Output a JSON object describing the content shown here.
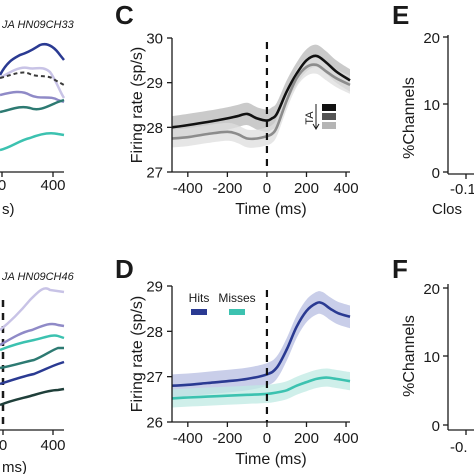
{
  "panels": {
    "A_partial": {
      "title": "JA HN09CH33",
      "xticks": [
        "0",
        "400"
      ],
      "xlabel": "s)"
    },
    "B_partial": {
      "title": "JA HN09CH46",
      "xticks": [
        "0",
        "400"
      ],
      "xlabel": "ms)"
    },
    "C": {
      "letter": "C"
    },
    "D": {
      "letter": "D"
    },
    "E_partial": {
      "letter": "E",
      "ylabel": "%Channels",
      "yticks": [
        "20",
        "10",
        "0"
      ],
      "xtick": "-0.1",
      "xlabel": "Clos"
    },
    "F_partial": {
      "letter": "F",
      "ylabel": "%Channels",
      "yticks": [
        "20",
        "10",
        "0"
      ],
      "xtick": "-0."
    }
  },
  "chart_data": [
    {
      "panel": "C",
      "type": "line",
      "title": "",
      "xlabel": "Time (ms)",
      "ylabel": "Firing rate (sp/s)",
      "xlim": [
        -480,
        420
      ],
      "ylim": [
        27,
        30
      ],
      "xticks": [
        -400,
        -200,
        0,
        200,
        400
      ],
      "yticks": [
        27,
        28,
        29,
        30
      ],
      "event_line_x": 0,
      "legend": {
        "label": "TA",
        "placement": "right",
        "swatches": [
          "#111111",
          "#555555",
          "#b5b5b5"
        ]
      },
      "series": [
        {
          "color": "#111111",
          "band": "#b8b8b8",
          "x": [
            -480,
            -400,
            -300,
            -200,
            -150,
            -100,
            -50,
            0,
            25,
            50,
            100,
            150,
            200,
            250,
            300,
            350,
            420
          ],
          "y": [
            28.0,
            28.05,
            28.12,
            28.2,
            28.25,
            28.3,
            28.2,
            28.15,
            28.2,
            28.3,
            28.8,
            29.2,
            29.5,
            29.6,
            29.45,
            29.25,
            29.05
          ],
          "band_halfwidth": 0.25
        },
        {
          "color": "#8c8c8c",
          "band": "#dddddd",
          "x": [
            -480,
            -400,
            -300,
            -200,
            -150,
            -100,
            -50,
            0,
            25,
            50,
            100,
            150,
            200,
            250,
            300,
            350,
            420
          ],
          "y": [
            27.75,
            27.78,
            27.85,
            27.9,
            27.85,
            27.75,
            27.75,
            27.8,
            27.85,
            28.0,
            28.6,
            29.1,
            29.35,
            29.4,
            29.25,
            29.1,
            28.95
          ],
          "band_halfwidth": 0.2
        }
      ]
    },
    {
      "panel": "D",
      "type": "line",
      "title": "",
      "xlabel": "Time (ms)",
      "ylabel": "Firing rate (sp/s)",
      "xlim": [
        -480,
        420
      ],
      "ylim": [
        26,
        29
      ],
      "xticks": [
        -400,
        -200,
        0,
        200,
        400
      ],
      "yticks": [
        26,
        27,
        28,
        29
      ],
      "event_line_x": 0,
      "legend": {
        "placement": "top-left"
      },
      "series": [
        {
          "name": "Hits",
          "color": "#2a3a92",
          "band": "#b7bde2",
          "x": [
            -480,
            -400,
            -300,
            -200,
            -100,
            0,
            50,
            100,
            150,
            200,
            250,
            280,
            320,
            360,
            420
          ],
          "y": [
            26.8,
            26.82,
            26.86,
            26.9,
            26.95,
            27.05,
            27.2,
            27.6,
            28.1,
            28.45,
            28.62,
            28.62,
            28.5,
            28.4,
            28.32
          ],
          "band_halfwidth": 0.25
        },
        {
          "name": "Misses",
          "color": "#3cc2b0",
          "band": "#bfe9e3",
          "x": [
            -480,
            -400,
            -300,
            -200,
            -100,
            0,
            50,
            100,
            150,
            200,
            250,
            300,
            350,
            420
          ],
          "y": [
            26.52,
            26.54,
            26.56,
            26.58,
            26.6,
            26.62,
            26.65,
            26.7,
            26.8,
            26.88,
            26.95,
            26.98,
            26.95,
            26.9
          ],
          "band_halfwidth": 0.2
        }
      ]
    }
  ]
}
